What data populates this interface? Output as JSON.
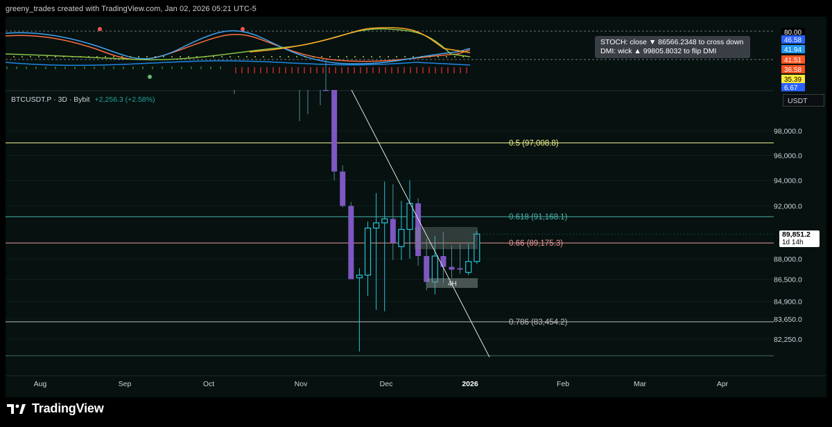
{
  "header": {
    "caption": "greeny_trades created with TradingView.com, Jan 02, 2026 05:21 UTC-5"
  },
  "brand": {
    "name": "TradingView"
  },
  "indicator_panel": {
    "info_lines": [
      "STOCH: close ▼ 86566.2348 to cross down",
      "DMI: wick ▲ 99805.8032 to flip DMI"
    ],
    "scale_labels": [
      {
        "text": "80.00",
        "bg": "#000000",
        "fg": "#ffffff"
      },
      {
        "text": "46.58",
        "bg": "#2962ff",
        "fg": "#ffffff"
      },
      {
        "text": "41.94",
        "bg": "#2196f3",
        "fg": "#ffffff"
      },
      {
        "text": "41.51",
        "bg": "#ff5722",
        "fg": "#ffffff"
      },
      {
        "text": "36.58",
        "bg": "#f4511e",
        "fg": "#ffffff"
      },
      {
        "text": "35.39",
        "bg": "#ffeb3b",
        "fg": "#000000"
      },
      {
        "text": "6.67",
        "bg": "#2962ff",
        "fg": "#ffffff"
      }
    ]
  },
  "main_panel": {
    "symbol": "BTCUSDT.P · 3D · Bybit",
    "change": "+2,256.3 (+2.58%)",
    "currency_button": "USDT",
    "price_badge": {
      "price": "89,851.2",
      "countdown": "1d 14h"
    },
    "timeframe_box_label": "4H"
  },
  "colors": {
    "up_candle": "#26c6da",
    "down_candle": "#7e57c2",
    "fib_05": "#f0f08c",
    "fib_0618": "#4db6ac",
    "fib_066": "#ef9a9a",
    "fib_0786": "#bdbdbd",
    "trendline": "#e8e8e8"
  },
  "chart_data": {
    "type": "candlestick",
    "symbol": "BTCUSDT.P",
    "interval": "3D",
    "exchange": "Bybit",
    "y_scale": "log",
    "yticks": [
      98000,
      96000,
      94000,
      92000,
      88000,
      86500,
      84900,
      83650,
      82250
    ],
    "ytick_labels": [
      "98,000.0",
      "96,000.0",
      "94,000.0",
      "92,000.0",
      "88,000.0",
      "86,500.0",
      "84,900.0",
      "83,650.0",
      "82,250.0"
    ],
    "xtick_labels": [
      "Aug",
      "Sep",
      "Oct",
      "Nov",
      "Dec",
      "2026",
      "Feb",
      "Mar",
      "Apr"
    ],
    "fib_levels": [
      {
        "ratio": "0.5",
        "label": "0.5 (97,008.8)",
        "price": 97008.8
      },
      {
        "ratio": "0.618",
        "label": "0.618 (91,168.1)",
        "price": 91168.1
      },
      {
        "ratio": "0.66",
        "label": "0.66 (89,175.3)",
        "price": 89175.3
      },
      {
        "ratio": "0.786",
        "label": "0.786 (83,454.2)",
        "price": 83454.2
      }
    ],
    "last_price": 89851.2,
    "candles": [
      {
        "o": 110000,
        "h": 110000,
        "l": 104000,
        "c": 104000
      },
      {
        "o": 104000,
        "h": 104500,
        "l": 94000,
        "c": 94700
      },
      {
        "o": 94700,
        "h": 95200,
        "l": 91900,
        "c": 92000
      },
      {
        "o": 92000,
        "h": 92300,
        "l": 86600,
        "c": 86500
      },
      {
        "o": 86600,
        "h": 87300,
        "l": 81400,
        "c": 86800
      },
      {
        "o": 86800,
        "h": 90800,
        "l": 85300,
        "c": 90300
      },
      {
        "o": 90300,
        "h": 93000,
        "l": 84300,
        "c": 90700
      },
      {
        "o": 90700,
        "h": 93900,
        "l": 84200,
        "c": 91000
      },
      {
        "o": 91000,
        "h": 93700,
        "l": 87900,
        "c": 89200
      },
      {
        "o": 88900,
        "h": 92400,
        "l": 87900,
        "c": 90200
      },
      {
        "o": 90200,
        "h": 94000,
        "l": 88000,
        "c": 92200
      },
      {
        "o": 92200,
        "h": 92600,
        "l": 87500,
        "c": 88200
      },
      {
        "o": 88200,
        "h": 89500,
        "l": 85700,
        "c": 86300
      },
      {
        "o": 86300,
        "h": 89700,
        "l": 85400,
        "c": 88200
      },
      {
        "o": 88200,
        "h": 90000,
        "l": 86200,
        "c": 87400
      },
      {
        "o": 87400,
        "h": 89000,
        "l": 86600,
        "c": 87200
      },
      {
        "o": 87300,
        "h": 89100,
        "l": 86900,
        "c": 87200
      },
      {
        "o": 87000,
        "h": 89100,
        "l": 86800,
        "c": 87800
      },
      {
        "o": 87800,
        "h": 90100,
        "l": 87600,
        "c": 89850
      }
    ]
  }
}
